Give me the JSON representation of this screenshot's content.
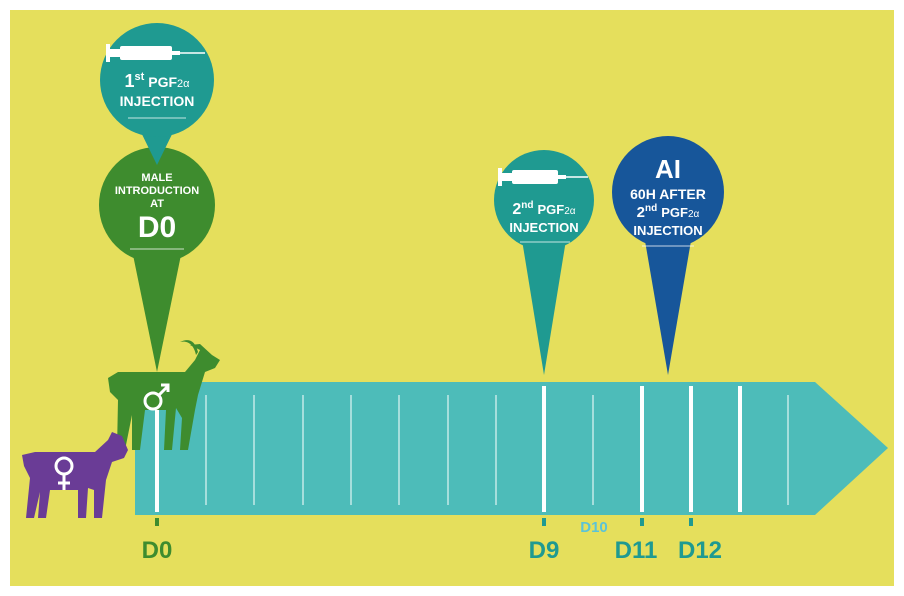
{
  "pins": [
    {
      "number": "1",
      "ordinal": "st",
      "hormone": "PGF",
      "subscript": "2α",
      "action": "INJECTION"
    },
    {
      "lines": [
        "MALE",
        "INTRODUCTION",
        "AT"
      ],
      "day": "D0"
    },
    {
      "number": "2",
      "ordinal": "nd",
      "hormone": "PGF",
      "subscript": "2α",
      "action": "INJECTION"
    },
    {
      "title": "AI",
      "delay": "60H AFTER",
      "number": "2",
      "ordinal": "nd",
      "hormone": "PGF",
      "subscript": "2α",
      "action": "INJECTION"
    }
  ],
  "days": [
    "D0",
    "D9",
    "D10",
    "D11",
    "D12"
  ]
}
